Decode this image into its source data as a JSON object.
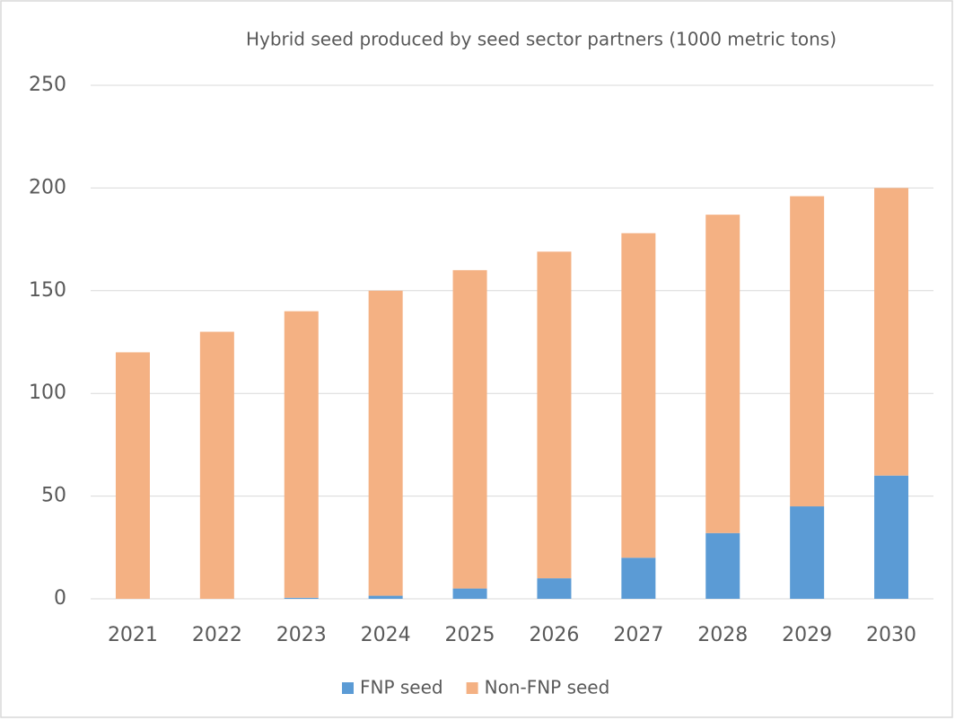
{
  "chart_data": {
    "type": "stacked_bar",
    "title": "Hybrid seed produced by seed sector partners (1000 metric tons)",
    "categories": [
      "2021",
      "2022",
      "2023",
      "2024",
      "2025",
      "2026",
      "2027",
      "2028",
      "2029",
      "2030"
    ],
    "series": [
      {
        "name": "FNP seed",
        "color": "#5b9bd5",
        "values": [
          0,
          0,
          0.5,
          1.5,
          5,
          10,
          20,
          32,
          45,
          60
        ]
      },
      {
        "name": "Non-FNP seed",
        "color": "#f4b183",
        "values": [
          120,
          130,
          139.5,
          148.5,
          155,
          159,
          158,
          155,
          151,
          140
        ]
      }
    ],
    "ylim": [
      0,
      250
    ],
    "yticks": [
      0,
      50,
      100,
      150,
      200,
      250
    ],
    "grid": true
  }
}
